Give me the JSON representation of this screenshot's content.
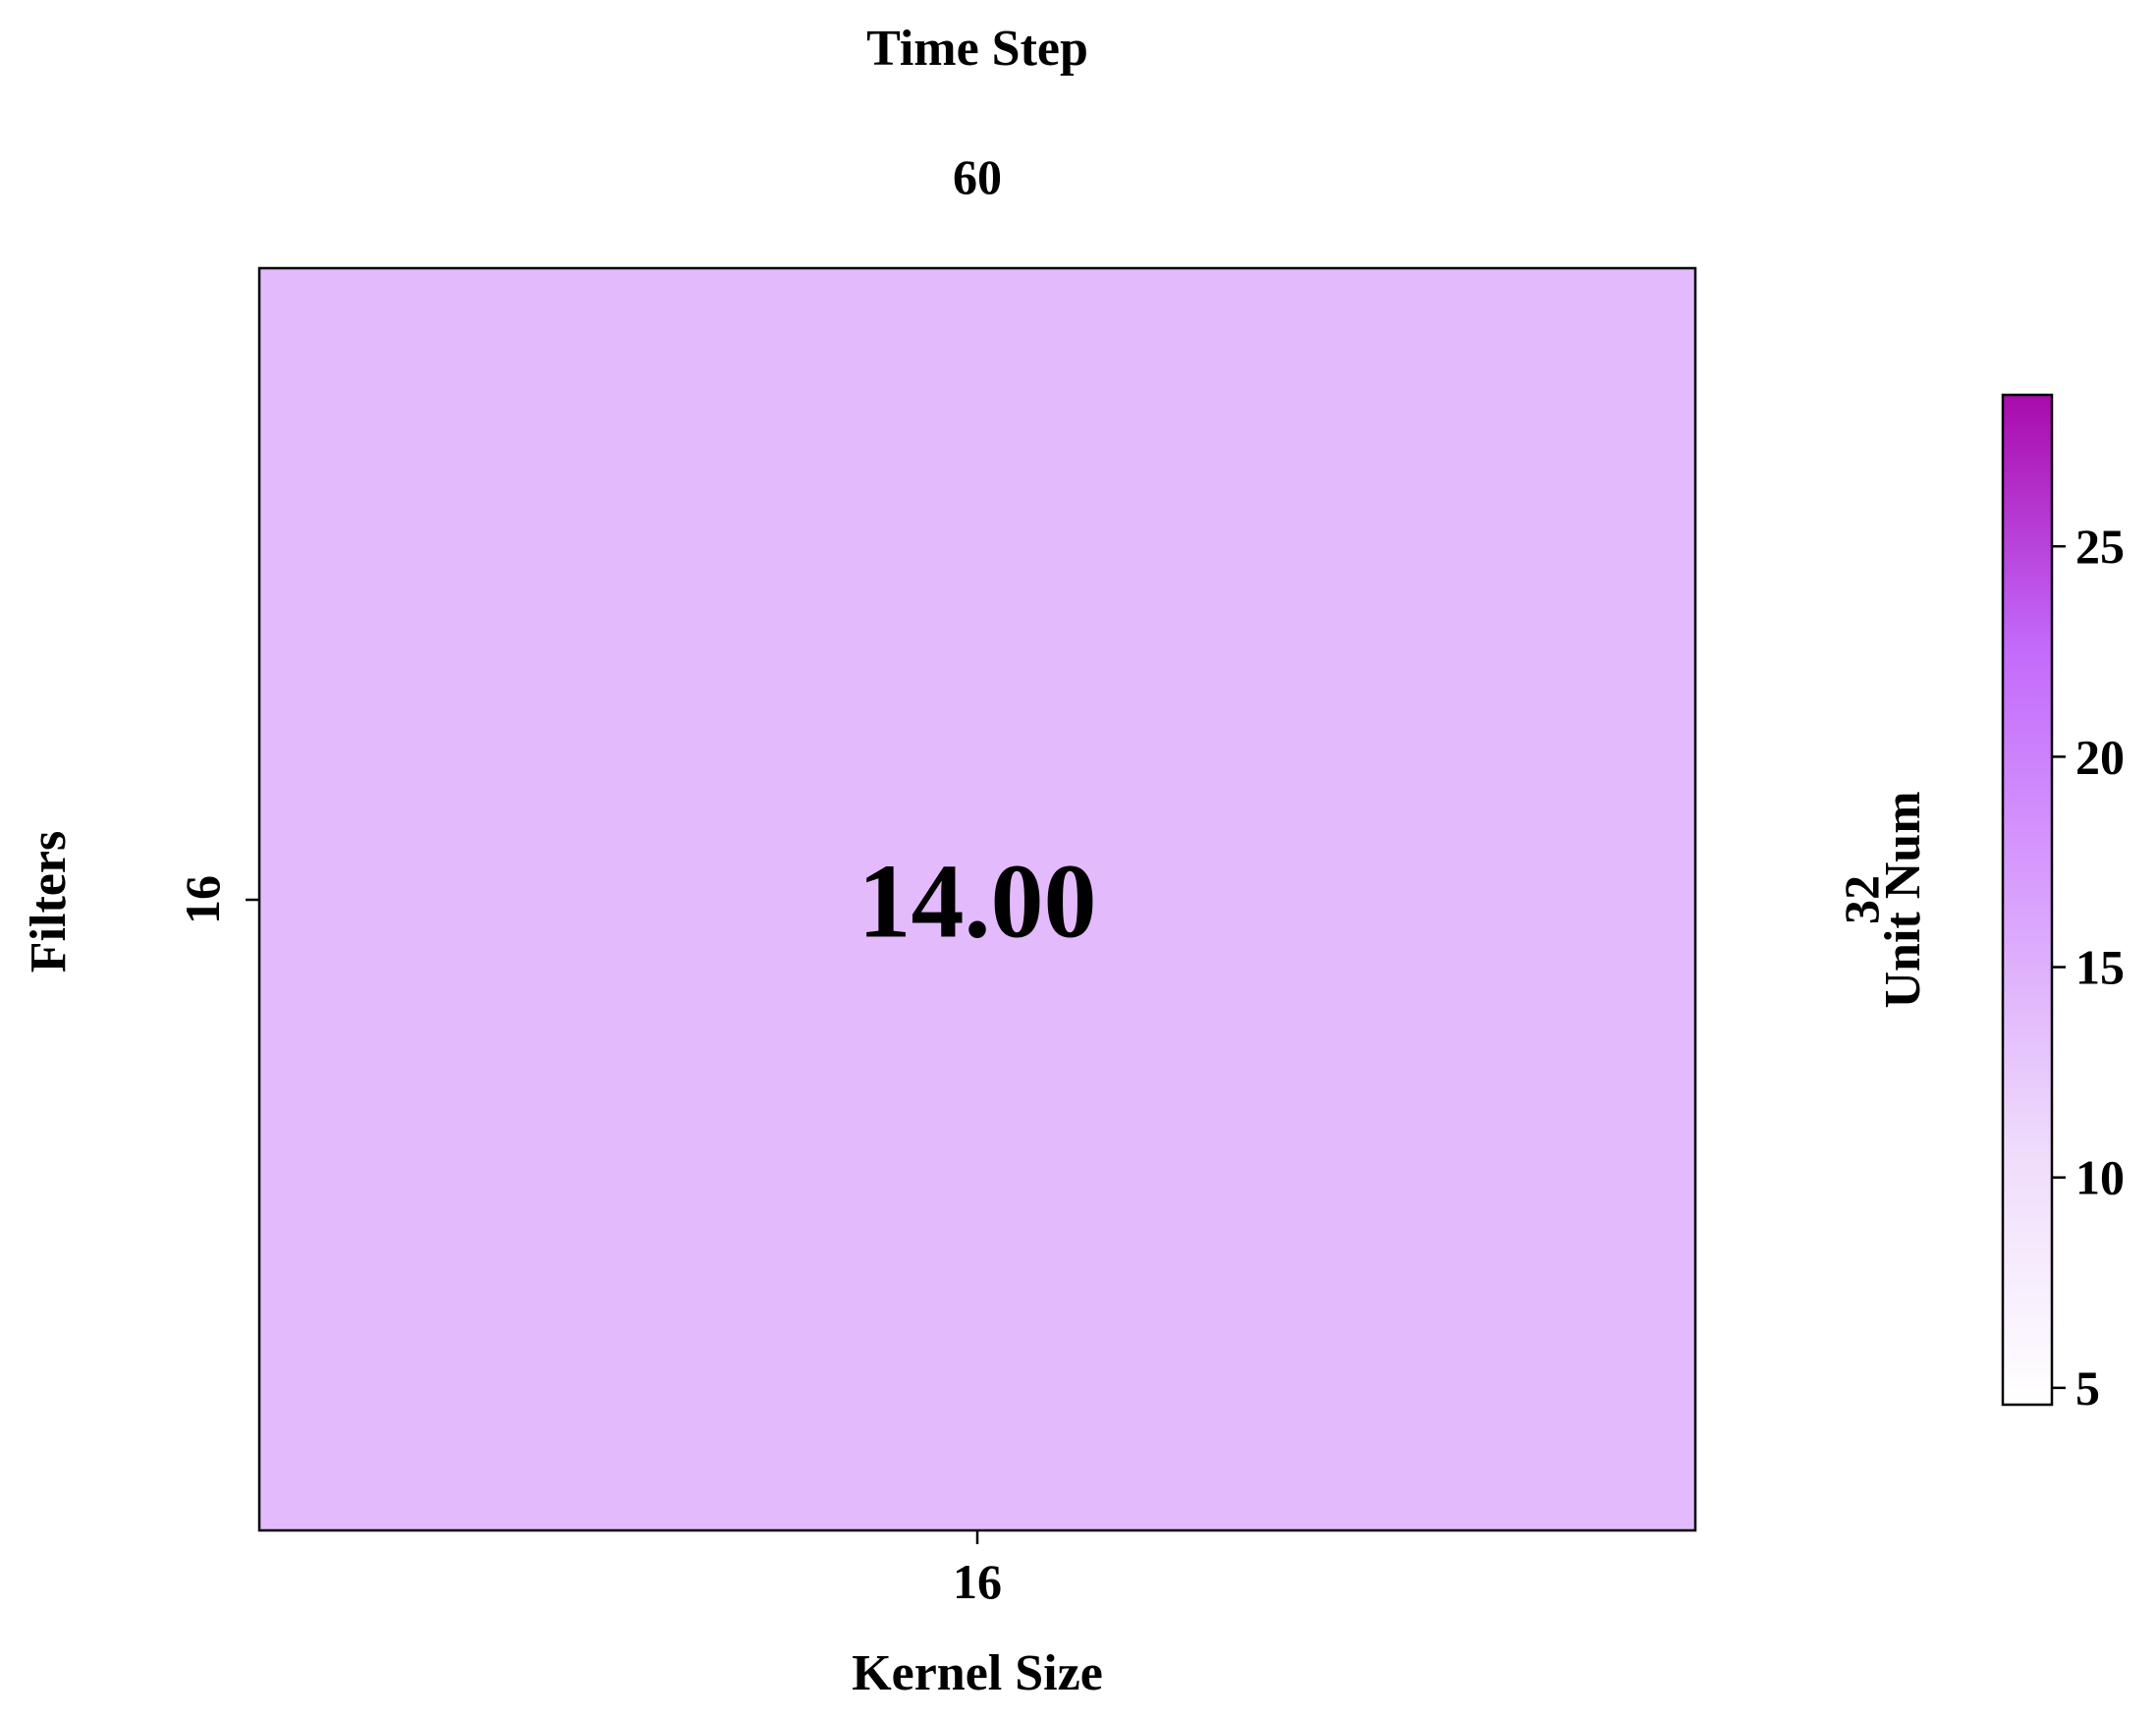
{
  "chart_data": {
    "type": "heatmap",
    "title": "",
    "top_axis": {
      "label": "Time Step",
      "ticks": [
        "60"
      ]
    },
    "xlabel": "Kernel Size",
    "ylabel": "Filters",
    "right_axis": {
      "label": "Unit Num",
      "ticks": [
        "32"
      ]
    },
    "x_categories": [
      "16"
    ],
    "y_categories": [
      "16"
    ],
    "cells": [
      {
        "x": "16",
        "y": "16",
        "value": 14.0,
        "label": "14.00"
      }
    ],
    "colorbar": {
      "min": 4.6,
      "max": 28.6,
      "ticks": [
        5,
        10,
        15,
        20,
        25
      ],
      "tick_labels": [
        "5",
        "10",
        "15",
        "20",
        "25"
      ],
      "colors": [
        "#ffffff",
        "#efdcfb",
        "#d9a1fd",
        "#c36afb",
        "#a90aac"
      ]
    },
    "grid": false
  }
}
